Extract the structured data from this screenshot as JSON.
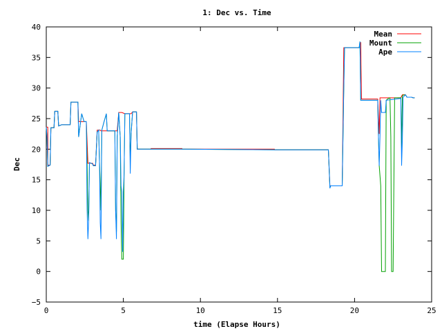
{
  "chart_data": {
    "type": "line",
    "title": "1: Dec vs. Time",
    "xlabel": "time (Elapse Hours)",
    "ylabel": "Dec",
    "xlim": [
      0,
      25
    ],
    "ylim": [
      -5,
      40
    ],
    "xticks": [
      0,
      5,
      10,
      15,
      20,
      25
    ],
    "yticks": [
      -5,
      0,
      5,
      10,
      15,
      20,
      25,
      30,
      35,
      40
    ],
    "grid": false,
    "legend_position": "top-right",
    "series": [
      {
        "name": "Mean",
        "color": "#ff0000",
        "points": [
          [
            0.0,
            23.6
          ],
          [
            0.1,
            23.6
          ],
          [
            0.1,
            17.4
          ],
          [
            0.25,
            17.4
          ],
          [
            0.3,
            23.5
          ],
          [
            0.5,
            23.5
          ],
          [
            0.55,
            26.2
          ],
          [
            0.75,
            26.2
          ],
          [
            0.8,
            23.8
          ],
          [
            1.0,
            24.0
          ],
          [
            1.55,
            24.0
          ],
          [
            1.6,
            27.7
          ],
          [
            2.05,
            27.7
          ],
          [
            2.1,
            24.5
          ],
          [
            2.6,
            24.5
          ],
          [
            2.7,
            17.7
          ],
          [
            3.0,
            17.7
          ],
          [
            3.05,
            17.4
          ],
          [
            3.2,
            17.4
          ],
          [
            3.3,
            23.1
          ],
          [
            3.5,
            23.1
          ],
          [
            3.55,
            23.0
          ],
          [
            4.05,
            23.0
          ],
          [
            4.1,
            23.0
          ],
          [
            4.6,
            23.0
          ],
          [
            4.7,
            26.0
          ],
          [
            4.9,
            26.0
          ],
          [
            5.1,
            25.8
          ],
          [
            5.5,
            25.8
          ],
          [
            5.6,
            26.1
          ],
          [
            5.85,
            26.1
          ],
          [
            5.9,
            20.0
          ],
          [
            6.8,
            20.0
          ],
          [
            6.8,
            20.1
          ],
          [
            8.8,
            20.1
          ],
          [
            8.8,
            20.0
          ],
          [
            14.8,
            20.0
          ],
          [
            14.8,
            19.9
          ],
          [
            18.3,
            19.9
          ],
          [
            18.4,
            14.0
          ],
          [
            19.2,
            14.0
          ],
          [
            19.3,
            36.6
          ],
          [
            20.3,
            36.6
          ],
          [
            20.4,
            37.5
          ],
          [
            20.45,
            28.2
          ],
          [
            21.5,
            28.2
          ],
          [
            21.6,
            22.5
          ],
          [
            21.65,
            28.4
          ],
          [
            23.0,
            28.4
          ],
          [
            23.1,
            28.9
          ],
          [
            23.3,
            28.9
          ],
          [
            23.4,
            28.5
          ],
          [
            23.7,
            28.5
          ],
          [
            23.8,
            28.4
          ],
          [
            23.9,
            28.4
          ]
        ]
      },
      {
        "name": "Mount",
        "color": "#00a000",
        "points": [
          [
            0.0,
            23.6
          ],
          [
            0.05,
            22.0
          ],
          [
            0.1,
            17.2
          ],
          [
            0.25,
            17.4
          ],
          [
            0.3,
            23.5
          ],
          [
            0.5,
            23.5
          ],
          [
            0.55,
            26.2
          ],
          [
            0.75,
            26.2
          ],
          [
            0.8,
            23.8
          ],
          [
            1.0,
            24.0
          ],
          [
            1.55,
            24.0
          ],
          [
            1.6,
            27.7
          ],
          [
            2.05,
            27.7
          ],
          [
            2.1,
            22.0
          ],
          [
            2.2,
            24.0
          ],
          [
            2.3,
            25.8
          ],
          [
            2.45,
            24.5
          ],
          [
            2.6,
            24.5
          ],
          [
            2.7,
            10.0
          ],
          [
            2.75,
            8.3
          ],
          [
            2.8,
            17.8
          ],
          [
            3.0,
            17.6
          ],
          [
            3.05,
            17.3
          ],
          [
            3.2,
            17.3
          ],
          [
            3.3,
            22.8
          ],
          [
            3.4,
            23.1
          ],
          [
            3.45,
            18.0
          ],
          [
            3.5,
            14.6
          ],
          [
            3.55,
            10.0
          ],
          [
            3.6,
            23.1
          ],
          [
            3.75,
            24.5
          ],
          [
            3.9,
            25.8
          ],
          [
            3.95,
            23.0
          ],
          [
            4.05,
            23.0
          ],
          [
            4.45,
            23.0
          ],
          [
            4.5,
            10.0
          ],
          [
            4.55,
            6.5
          ],
          [
            4.6,
            22.0
          ],
          [
            4.7,
            26.0
          ],
          [
            4.8,
            22.0
          ],
          [
            4.85,
            8.0
          ],
          [
            4.9,
            2.0
          ],
          [
            5.0,
            2.0
          ],
          [
            5.05,
            16.0
          ],
          [
            5.1,
            25.8
          ],
          [
            5.4,
            25.8
          ],
          [
            5.45,
            18.0
          ],
          [
            5.5,
            22.5
          ],
          [
            5.6,
            26.1
          ],
          [
            5.85,
            26.1
          ],
          [
            5.9,
            20.0
          ],
          [
            6.8,
            20.0
          ],
          [
            8.8,
            20.0
          ],
          [
            14.8,
            19.9
          ],
          [
            18.3,
            19.9
          ],
          [
            18.4,
            13.7
          ],
          [
            18.45,
            14.0
          ],
          [
            19.2,
            14.0
          ],
          [
            19.3,
            30.0
          ],
          [
            19.35,
            36.6
          ],
          [
            20.3,
            36.6
          ],
          [
            20.35,
            37.6
          ],
          [
            20.4,
            28.0
          ],
          [
            21.5,
            28.0
          ],
          [
            21.55,
            22.0
          ],
          [
            21.6,
            17.3
          ],
          [
            21.7,
            14.0
          ],
          [
            21.75,
            0.0
          ],
          [
            22.0,
            0.0
          ],
          [
            22.05,
            28.0
          ],
          [
            22.2,
            28.3
          ],
          [
            22.3,
            28.4
          ],
          [
            22.35,
            22.0
          ],
          [
            22.4,
            0.0
          ],
          [
            22.5,
            0.0
          ],
          [
            22.6,
            28.4
          ],
          [
            23.0,
            28.4
          ],
          [
            23.05,
            20.0
          ],
          [
            23.1,
            28.8
          ],
          [
            23.3,
            28.9
          ],
          [
            23.4,
            28.5
          ],
          [
            23.7,
            28.5
          ],
          [
            23.8,
            28.4
          ],
          [
            23.9,
            28.4
          ]
        ]
      },
      {
        "name": "Ape",
        "color": "#0080ff",
        "points": [
          [
            0.0,
            23.6
          ],
          [
            0.05,
            22.0
          ],
          [
            0.1,
            17.2
          ],
          [
            0.25,
            17.4
          ],
          [
            0.3,
            23.5
          ],
          [
            0.5,
            23.5
          ],
          [
            0.55,
            26.2
          ],
          [
            0.75,
            26.2
          ],
          [
            0.8,
            23.8
          ],
          [
            1.0,
            24.0
          ],
          [
            1.55,
            24.0
          ],
          [
            1.6,
            27.7
          ],
          [
            2.05,
            27.7
          ],
          [
            2.1,
            22.0
          ],
          [
            2.2,
            24.0
          ],
          [
            2.3,
            25.8
          ],
          [
            2.45,
            24.5
          ],
          [
            2.6,
            24.5
          ],
          [
            2.65,
            10.0
          ],
          [
            2.7,
            5.3
          ],
          [
            2.75,
            8.5
          ],
          [
            2.8,
            17.8
          ],
          [
            3.0,
            17.6
          ],
          [
            3.05,
            17.3
          ],
          [
            3.2,
            17.3
          ],
          [
            3.3,
            22.8
          ],
          [
            3.4,
            23.1
          ],
          [
            3.45,
            18.0
          ],
          [
            3.5,
            8.0
          ],
          [
            3.55,
            5.3
          ],
          [
            3.6,
            23.1
          ],
          [
            3.75,
            24.5
          ],
          [
            3.9,
            25.8
          ],
          [
            3.95,
            23.0
          ],
          [
            4.05,
            23.0
          ],
          [
            4.45,
            23.0
          ],
          [
            4.5,
            10.0
          ],
          [
            4.55,
            5.3
          ],
          [
            4.6,
            22.0
          ],
          [
            4.7,
            26.0
          ],
          [
            4.8,
            22.0
          ],
          [
            4.85,
            14.0
          ],
          [
            4.9,
            13.0
          ],
          [
            4.95,
            3.2
          ],
          [
            5.0,
            13.0
          ],
          [
            5.05,
            16.0
          ],
          [
            5.1,
            25.8
          ],
          [
            5.4,
            25.8
          ],
          [
            5.45,
            16.0
          ],
          [
            5.5,
            22.5
          ],
          [
            5.6,
            26.1
          ],
          [
            5.85,
            26.1
          ],
          [
            5.9,
            20.0
          ],
          [
            6.8,
            20.0
          ],
          [
            8.8,
            20.0
          ],
          [
            14.8,
            19.9
          ],
          [
            18.3,
            19.9
          ],
          [
            18.4,
            13.6
          ],
          [
            18.45,
            14.0
          ],
          [
            19.2,
            14.0
          ],
          [
            19.3,
            30.0
          ],
          [
            19.35,
            36.6
          ],
          [
            20.3,
            36.6
          ],
          [
            20.35,
            37.6
          ],
          [
            20.4,
            28.0
          ],
          [
            21.5,
            28.0
          ],
          [
            21.55,
            22.0
          ],
          [
            21.6,
            17.3
          ],
          [
            21.65,
            22.0
          ],
          [
            21.7,
            28.0
          ],
          [
            21.75,
            26.0
          ],
          [
            22.0,
            26.0
          ],
          [
            22.05,
            28.0
          ],
          [
            23.0,
            28.3
          ],
          [
            23.05,
            17.3
          ],
          [
            23.1,
            21.5
          ],
          [
            23.15,
            28.5
          ],
          [
            23.3,
            28.9
          ],
          [
            23.4,
            28.5
          ],
          [
            23.7,
            28.5
          ],
          [
            23.8,
            28.4
          ],
          [
            23.9,
            28.4
          ]
        ]
      }
    ]
  }
}
